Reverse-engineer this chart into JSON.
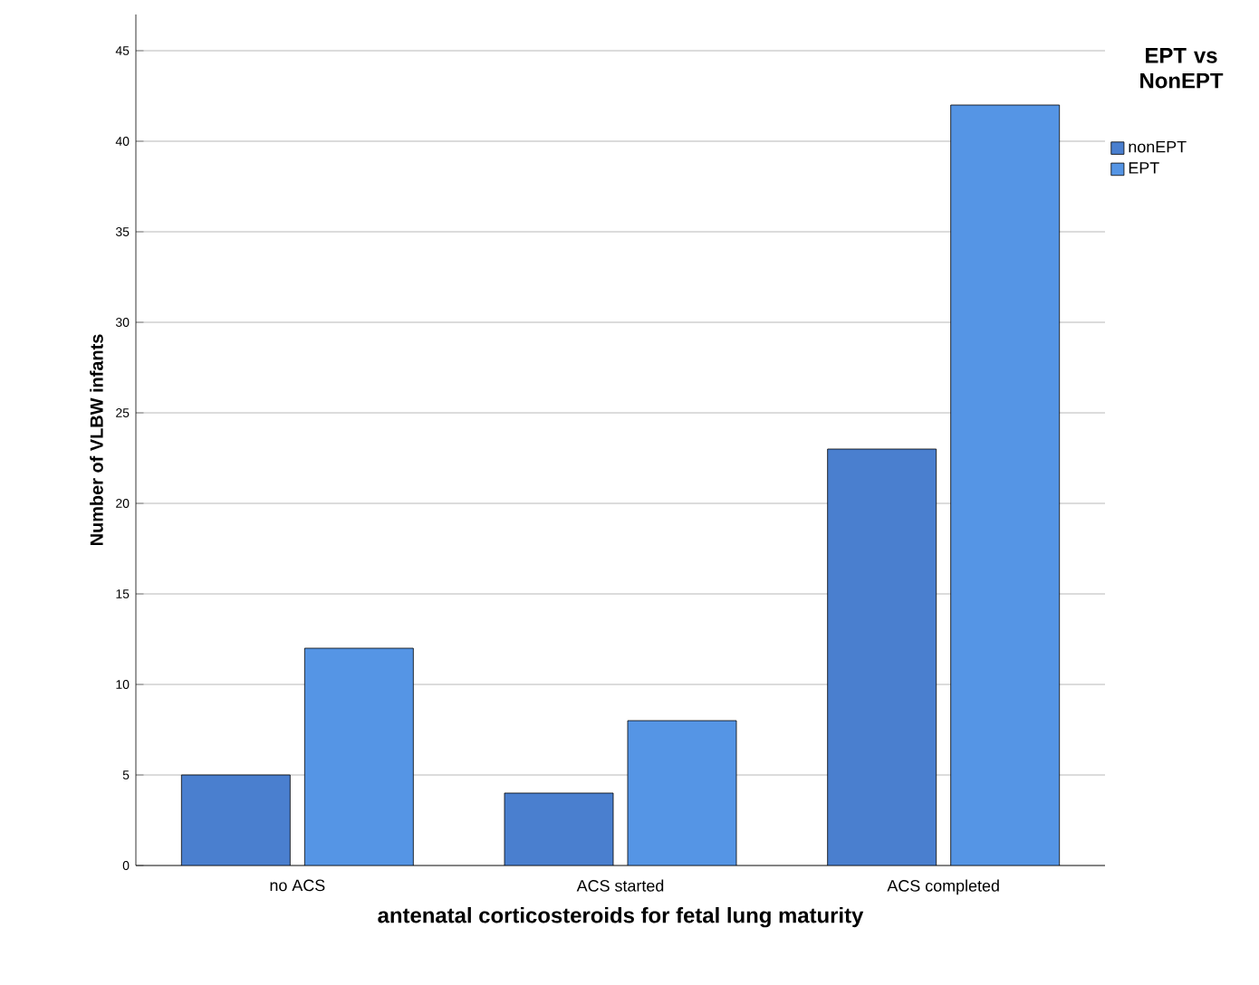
{
  "chart_data": {
    "type": "bar",
    "xlabel": "antenatal corticosteroids for fetal lung maturity",
    "ylabel": "Number of VLBW infants",
    "legend_title": "EPT vs NonEPT",
    "categories": [
      "no ACS",
      "ACS started",
      "ACS completed"
    ],
    "series": [
      {
        "name": "nonEPT",
        "color": "#4a7fcf",
        "values": [
          5,
          4,
          23
        ]
      },
      {
        "name": "EPT",
        "color": "#5595e5",
        "values": [
          12,
          8,
          42
        ]
      }
    ],
    "ylim": [
      0,
      47
    ],
    "yticks": [
      0,
      5,
      10,
      15,
      20,
      25,
      30,
      35,
      40,
      45
    ],
    "grid": "y",
    "legend": "top right"
  }
}
